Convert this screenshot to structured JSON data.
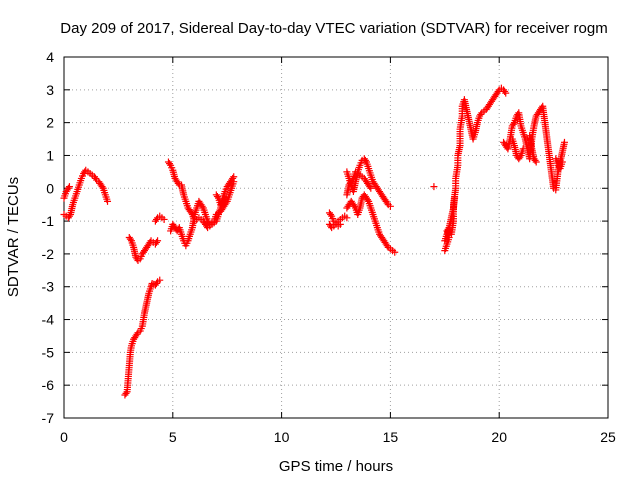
{
  "chart_data": {
    "type": "scatter",
    "title": "Day 209 of 2017, Sidereal Day-to-day VTEC variation (SDTVAR) for receiver rogm",
    "xlabel": "GPS time / hours",
    "ylabel": "SDTVAR / TECUs",
    "xlim": [
      0,
      25
    ],
    "ylim": [
      -7,
      4
    ],
    "xticks": [
      "0",
      "5",
      "10",
      "15",
      "20",
      "25"
    ],
    "yticks": [
      "4",
      "3",
      "2",
      "1",
      "0",
      "-1",
      "-2",
      "-3",
      "-4",
      "-5",
      "-6",
      "-7"
    ],
    "grid": true,
    "marker": "+",
    "color": "#ff0000",
    "series": [
      {
        "name": "SDTVAR",
        "segments": [
          [
            [
              0.0,
              -0.3
            ],
            [
              0.1,
              -0.1
            ],
            [
              0.2,
              0.0
            ],
            [
              0.25,
              0.05
            ]
          ],
          [
            [
              0.0,
              -0.8
            ],
            [
              0.1,
              -0.85
            ],
            [
              0.2,
              -0.9
            ],
            [
              0.3,
              -0.8
            ],
            [
              0.4,
              -0.5
            ],
            [
              0.5,
              -0.3
            ],
            [
              0.6,
              -0.1
            ],
            [
              0.7,
              0.1
            ],
            [
              0.8,
              0.3
            ],
            [
              0.9,
              0.45
            ],
            [
              1.0,
              0.55
            ],
            [
              1.1,
              0.5
            ],
            [
              1.2,
              0.45
            ],
            [
              1.3,
              0.4
            ],
            [
              1.4,
              0.35
            ],
            [
              1.5,
              0.25
            ],
            [
              1.6,
              0.2
            ],
            [
              1.7,
              0.1
            ],
            [
              1.8,
              0.0
            ],
            [
              1.9,
              -0.2
            ],
            [
              2.0,
              -0.4
            ]
          ],
          [
            [
              2.8,
              -6.3
            ],
            [
              2.9,
              -6.2
            ],
            [
              2.95,
              -5.8
            ],
            [
              3.0,
              -5.4
            ],
            [
              3.05,
              -5.0
            ],
            [
              3.1,
              -4.8
            ],
            [
              3.2,
              -4.6
            ],
            [
              3.3,
              -4.5
            ],
            [
              3.4,
              -4.4
            ],
            [
              3.5,
              -4.35
            ],
            [
              3.6,
              -4.2
            ],
            [
              3.65,
              -4.0
            ],
            [
              3.7,
              -3.8
            ],
            [
              3.8,
              -3.5
            ],
            [
              3.9,
              -3.2
            ],
            [
              4.0,
              -3.0
            ],
            [
              4.05,
              -2.9
            ],
            [
              4.2,
              -2.95
            ],
            [
              4.3,
              -2.85
            ],
            [
              4.4,
              -2.8
            ]
          ],
          [
            [
              3.0,
              -1.5
            ],
            [
              3.1,
              -1.6
            ],
            [
              3.2,
              -1.8
            ],
            [
              3.3,
              -2.1
            ],
            [
              3.4,
              -2.2
            ],
            [
              3.5,
              -2.15
            ],
            [
              3.6,
              -2.0
            ],
            [
              3.7,
              -1.9
            ],
            [
              3.8,
              -1.8
            ],
            [
              3.9,
              -1.7
            ],
            [
              4.0,
              -1.6
            ],
            [
              4.1,
              -1.65
            ],
            [
              4.2,
              -1.7
            ],
            [
              4.3,
              -1.6
            ]
          ],
          [
            [
              4.2,
              -1.0
            ],
            [
              4.3,
              -0.9
            ],
            [
              4.4,
              -0.85
            ],
            [
              4.5,
              -0.9
            ],
            [
              4.6,
              -0.95
            ]
          ],
          [
            [
              4.8,
              0.8
            ],
            [
              4.9,
              0.7
            ],
            [
              5.0,
              0.55
            ],
            [
              5.1,
              0.3
            ],
            [
              5.2,
              0.2
            ],
            [
              5.3,
              0.1
            ],
            [
              5.4,
              0.1
            ],
            [
              5.5,
              -0.2
            ],
            [
              5.6,
              -0.4
            ],
            [
              5.7,
              -0.6
            ],
            [
              5.8,
              -0.7
            ],
            [
              5.9,
              -0.8
            ],
            [
              6.0,
              -1.0
            ],
            [
              6.2,
              -0.9
            ],
            [
              6.4,
              -1.0
            ],
            [
              6.6,
              -1.2
            ],
            [
              6.8,
              -1.1
            ],
            [
              7.0,
              -1.0
            ],
            [
              7.1,
              -0.8
            ],
            [
              7.2,
              -0.6
            ],
            [
              7.3,
              -0.3
            ],
            [
              7.4,
              -0.1
            ],
            [
              7.5,
              0.05
            ],
            [
              7.6,
              0.15
            ],
            [
              7.7,
              0.25
            ],
            [
              7.8,
              0.35
            ]
          ],
          [
            [
              4.9,
              -1.3
            ],
            [
              5.0,
              -1.1
            ],
            [
              5.1,
              -1.2
            ],
            [
              5.2,
              -1.3
            ],
            [
              5.3,
              -1.2
            ],
            [
              5.4,
              -1.4
            ],
            [
              5.5,
              -1.6
            ],
            [
              5.6,
              -1.75
            ],
            [
              5.7,
              -1.6
            ],
            [
              5.8,
              -1.4
            ],
            [
              5.9,
              -1.2
            ],
            [
              6.0,
              -0.8
            ],
            [
              6.1,
              -0.6
            ],
            [
              6.2,
              -0.4
            ],
            [
              6.3,
              -0.5
            ],
            [
              6.4,
              -0.6
            ],
            [
              6.5,
              -0.8
            ],
            [
              6.6,
              -1.0
            ],
            [
              6.7,
              -1.1
            ],
            [
              6.9,
              -1.0
            ],
            [
              7.0,
              -0.8
            ],
            [
              7.2,
              -0.7
            ],
            [
              7.3,
              -0.6
            ],
            [
              7.5,
              -0.4
            ],
            [
              7.6,
              -0.2
            ],
            [
              7.7,
              0.0
            ],
            [
              7.8,
              0.2
            ]
          ],
          [
            [
              7.0,
              -0.2
            ],
            [
              7.1,
              -0.3
            ],
            [
              7.2,
              -0.5
            ],
            [
              7.3,
              -0.4
            ],
            [
              7.4,
              -0.3
            ]
          ],
          [
            [
              12.2,
              -0.75
            ],
            [
              12.3,
              -0.85
            ],
            [
              12.4,
              -1.0
            ],
            [
              12.5,
              -1.05
            ],
            [
              12.6,
              -1.0
            ],
            [
              12.7,
              -0.95
            ],
            [
              12.8,
              -0.9
            ],
            [
              12.9,
              -0.85
            ],
            [
              13.0,
              -0.9
            ]
          ],
          [
            [
              12.2,
              -1.1
            ],
            [
              12.3,
              -1.2
            ],
            [
              12.4,
              -1.15
            ],
            [
              12.5,
              -1.1
            ],
            [
              12.6,
              -1.15
            ],
            [
              12.7,
              -1.1
            ]
          ],
          [
            [
              13.0,
              0.5
            ],
            [
              13.1,
              0.3
            ],
            [
              13.2,
              0.1
            ],
            [
              13.3,
              -0.1
            ],
            [
              13.4,
              0.2
            ],
            [
              13.5,
              0.5
            ],
            [
              13.6,
              0.7
            ],
            [
              13.7,
              0.85
            ],
            [
              13.8,
              0.9
            ],
            [
              13.9,
              0.8
            ],
            [
              14.0,
              0.6
            ],
            [
              14.1,
              0.4
            ],
            [
              14.2,
              0.2
            ],
            [
              14.3,
              0.1
            ],
            [
              14.4,
              0.0
            ],
            [
              14.5,
              -0.1
            ],
            [
              14.6,
              -0.2
            ],
            [
              14.7,
              -0.3
            ],
            [
              14.8,
              -0.4
            ],
            [
              14.9,
              -0.5
            ],
            [
              15.0,
              -0.55
            ]
          ],
          [
            [
              13.0,
              -0.6
            ],
            [
              13.1,
              -0.5
            ],
            [
              13.2,
              -0.4
            ],
            [
              13.3,
              -0.5
            ],
            [
              13.4,
              -0.6
            ],
            [
              13.5,
              -0.8
            ],
            [
              13.6,
              -0.6
            ],
            [
              13.7,
              -0.3
            ],
            [
              13.8,
              -0.2
            ],
            [
              13.9,
              -0.3
            ],
            [
              14.0,
              -0.4
            ],
            [
              14.1,
              -0.6
            ],
            [
              14.2,
              -0.8
            ],
            [
              14.3,
              -1.0
            ],
            [
              14.4,
              -1.2
            ],
            [
              14.5,
              -1.4
            ],
            [
              14.6,
              -1.5
            ],
            [
              14.7,
              -1.6
            ],
            [
              14.8,
              -1.7
            ],
            [
              14.9,
              -1.8
            ],
            [
              15.0,
              -1.85
            ],
            [
              15.1,
              -1.9
            ],
            [
              15.2,
              -1.95
            ]
          ],
          [
            [
              13.0,
              -0.2
            ],
            [
              13.1,
              0.1
            ],
            [
              13.3,
              0.3
            ],
            [
              13.4,
              0.5
            ],
            [
              13.6,
              0.4
            ],
            [
              13.8,
              0.3
            ],
            [
              14.0,
              0.1
            ],
            [
              14.1,
              0.0
            ]
          ],
          [
            [
              17.0,
              0.05
            ]
          ],
          [
            [
              17.5,
              -1.9
            ],
            [
              17.6,
              -1.7
            ],
            [
              17.7,
              -1.5
            ],
            [
              17.6,
              -1.3
            ],
            [
              17.7,
              -1.2
            ],
            [
              17.8,
              -1.4
            ],
            [
              17.9,
              -1.0
            ],
            [
              17.9,
              -0.5
            ],
            [
              18.0,
              0.0
            ],
            [
              18.0,
              0.3
            ],
            [
              18.1,
              0.7
            ],
            [
              18.1,
              1.0
            ],
            [
              18.2,
              1.3
            ],
            [
              18.2,
              1.8
            ],
            [
              18.3,
              2.2
            ],
            [
              18.3,
              2.5
            ],
            [
              18.4,
              2.7
            ],
            [
              18.5,
              2.4
            ],
            [
              18.6,
              2.1
            ],
            [
              18.7,
              1.8
            ],
            [
              18.8,
              1.5
            ],
            [
              18.9,
              1.7
            ],
            [
              19.0,
              2.0
            ],
            [
              19.1,
              2.2
            ],
            [
              19.2,
              2.3
            ],
            [
              19.3,
              2.35
            ],
            [
              19.4,
              2.4
            ],
            [
              19.5,
              2.5
            ],
            [
              19.6,
              2.6
            ],
            [
              19.7,
              2.7
            ],
            [
              19.8,
              2.8
            ],
            [
              19.9,
              2.9
            ],
            [
              20.0,
              3.0
            ],
            [
              20.1,
              3.05
            ],
            [
              20.2,
              3.0
            ],
            [
              20.3,
              2.9
            ]
          ],
          [
            [
              17.5,
              -1.6
            ],
            [
              17.6,
              -1.4
            ],
            [
              17.7,
              -1.2
            ],
            [
              17.8,
              -0.9
            ],
            [
              17.9,
              -0.6
            ],
            [
              17.95,
              -0.3
            ]
          ],
          [
            [
              20.2,
              1.4
            ],
            [
              20.3,
              1.3
            ],
            [
              20.4,
              1.2
            ],
            [
              20.5,
              1.5
            ],
            [
              20.6,
              1.9
            ],
            [
              20.7,
              2.0
            ],
            [
              20.8,
              2.2
            ],
            [
              20.9,
              2.3
            ],
            [
              21.0,
              1.9
            ],
            [
              21.1,
              1.7
            ],
            [
              21.2,
              1.5
            ],
            [
              21.3,
              1.2
            ],
            [
              21.4,
              0.9
            ],
            [
              21.5,
              1.5
            ],
            [
              21.6,
              1.9
            ],
            [
              21.7,
              2.2
            ],
            [
              21.8,
              2.3
            ],
            [
              21.9,
              2.4
            ],
            [
              22.0,
              2.5
            ],
            [
              22.1,
              2.0
            ],
            [
              22.2,
              1.5
            ],
            [
              22.3,
              1.0
            ],
            [
              22.4,
              0.5
            ],
            [
              22.5,
              0.0
            ],
            [
              22.6,
              -0.05
            ],
            [
              22.7,
              0.5
            ],
            [
              22.8,
              0.8
            ],
            [
              22.9,
              1.1
            ],
            [
              23.0,
              1.4
            ]
          ],
          [
            [
              20.6,
              1.5
            ],
            [
              20.7,
              1.3
            ],
            [
              20.8,
              1.0
            ],
            [
              20.9,
              0.9
            ],
            [
              21.0,
              1.0
            ],
            [
              21.1,
              1.2
            ]
          ],
          [
            [
              21.4,
              1.6
            ],
            [
              21.5,
              1.2
            ],
            [
              21.6,
              0.9
            ],
            [
              21.7,
              0.8
            ]
          ],
          [
            [
              22.6,
              0.9
            ],
            [
              22.7,
              0.7
            ],
            [
              22.8,
              0.6
            ],
            [
              22.9,
              0.8
            ]
          ]
        ]
      }
    ]
  }
}
